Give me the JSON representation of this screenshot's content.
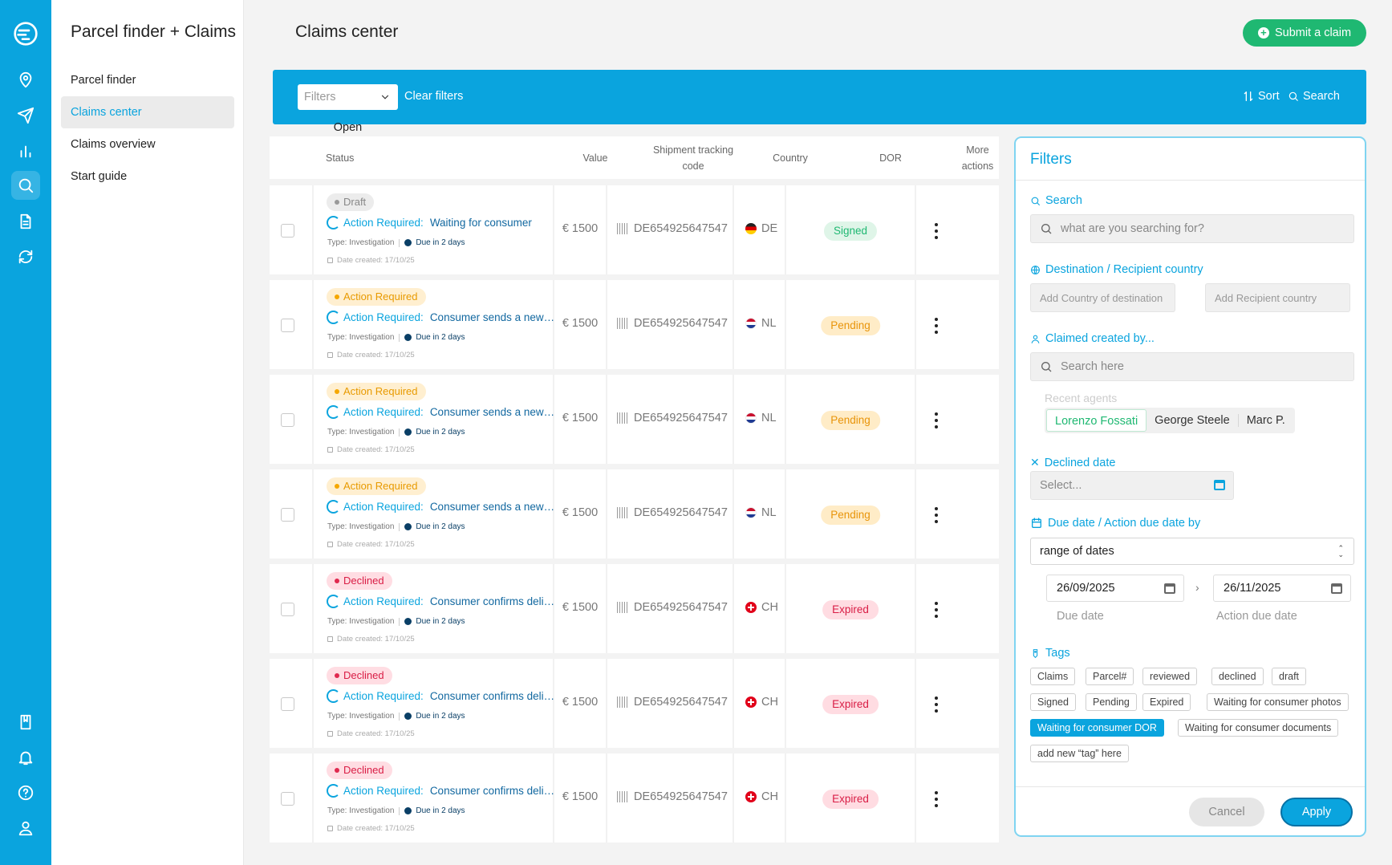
{
  "app": {
    "title": "Parcel finder + Claims",
    "rail_icons": [
      "logo-icon",
      "location-pin-icon",
      "send-icon",
      "bar-chart-icon",
      "search-icon",
      "document-icon",
      "refresh-icon",
      "book-icon",
      "bell-icon",
      "help-icon",
      "user-icon"
    ]
  },
  "subnav": {
    "items": [
      {
        "label": "Parcel finder"
      },
      {
        "label": "Claims center"
      },
      {
        "label": "Claims overview"
      },
      {
        "label": "Start guide"
      }
    ],
    "active": "Claims center"
  },
  "header": {
    "title": "Claims center",
    "submit_label": "Submit a claim"
  },
  "filterbar": {
    "filter_label": "Filters",
    "filter_value": "Open",
    "clear_label": "Clear filters",
    "sort_label": "Sort",
    "search_label": "Search"
  },
  "table": {
    "headers": {
      "status": "Status",
      "value": "Value",
      "tracking": "Shipment tracking code",
      "country": "Country",
      "dor": "DOR",
      "more": "More actions"
    },
    "common": {
      "action_required": "Action Required:",
      "type": "Type: Investigation",
      "due": "Due in 2 days",
      "date_created": "Date created: 17/10/25"
    },
    "rows": [
      {
        "badge": "Draft",
        "badge_kind": "draft",
        "action_text": "Waiting for consumer",
        "value": "€ 1500",
        "tracking": "DE654925647547",
        "country": "DE",
        "dor": "Signed",
        "dor_kind": "signed"
      },
      {
        "badge": "Action Required",
        "badge_kind": "action",
        "action_text": "Consumer sends a new…",
        "value": "€ 1500",
        "tracking": "DE654925647547",
        "country": "NL",
        "dor": "Pending",
        "dor_kind": "pending"
      },
      {
        "badge": "Action Required",
        "badge_kind": "action",
        "action_text": "Consumer sends a new…",
        "value": "€ 1500",
        "tracking": "DE654925647547",
        "country": "NL",
        "dor": "Pending",
        "dor_kind": "pending"
      },
      {
        "badge": "Action Required",
        "badge_kind": "action",
        "action_text": "Consumer sends a new…",
        "value": "€ 1500",
        "tracking": "DE654925647547",
        "country": "NL",
        "dor": "Pending",
        "dor_kind": "pending"
      },
      {
        "badge": "Declined",
        "badge_kind": "declined",
        "action_text": "Consumer confirms delive…",
        "value": "€ 1500",
        "tracking": "DE654925647547",
        "country": "CH",
        "dor": "Expired",
        "dor_kind": "expired"
      },
      {
        "badge": "Declined",
        "badge_kind": "declined",
        "action_text": "Consumer confirms delive…",
        "value": "€ 1500",
        "tracking": "DE654925647547",
        "country": "CH",
        "dor": "Expired",
        "dor_kind": "expired"
      },
      {
        "badge": "Declined",
        "badge_kind": "declined",
        "action_text": "Consumer confirms delive…",
        "value": "€ 1500",
        "tracking": "DE654925647547",
        "country": "CH",
        "dor": "Expired",
        "dor_kind": "expired"
      }
    ]
  },
  "filters_panel": {
    "title": "Filters",
    "search": {
      "label": "Search",
      "placeholder": "what are you searching for?"
    },
    "destination": {
      "label": "Destination / Recipient country",
      "dest_placeholder": "Add Country of destination",
      "recipient_placeholder": "Add Recipient country"
    },
    "created_by": {
      "label": "Claimed created by...",
      "placeholder": "Search here",
      "recent_label": "Recent agents",
      "agents": [
        "Lorenzo Fossati",
        "George Steele",
        "Marc P."
      ],
      "selected_agent": "Lorenzo Fossati"
    },
    "declined": {
      "label": "Declined date",
      "placeholder": "Select..."
    },
    "due": {
      "label": "Due date / Action due date by",
      "mode": "range of dates",
      "from": "26/09/2025",
      "to": "26/11/2025",
      "from_label": "Due date",
      "to_label": "Action due date"
    },
    "tags": {
      "label": "Tags",
      "items": [
        "Claims",
        "Parcel#",
        "reviewed",
        "declined",
        "draft",
        "Signed",
        "Pending",
        "Expired",
        "Waiting for consumer photos",
        "Waiting for consumer DOR",
        "Waiting for consumer documents",
        "add new  “tag” here"
      ],
      "selected": "Waiting for consumer DOR"
    },
    "cancel_label": "Cancel",
    "apply_label": "Apply"
  },
  "colors": {
    "brand": "#0aa4de",
    "success": "#1fb872",
    "warning": "#f5a700",
    "danger": "#e0294f"
  }
}
